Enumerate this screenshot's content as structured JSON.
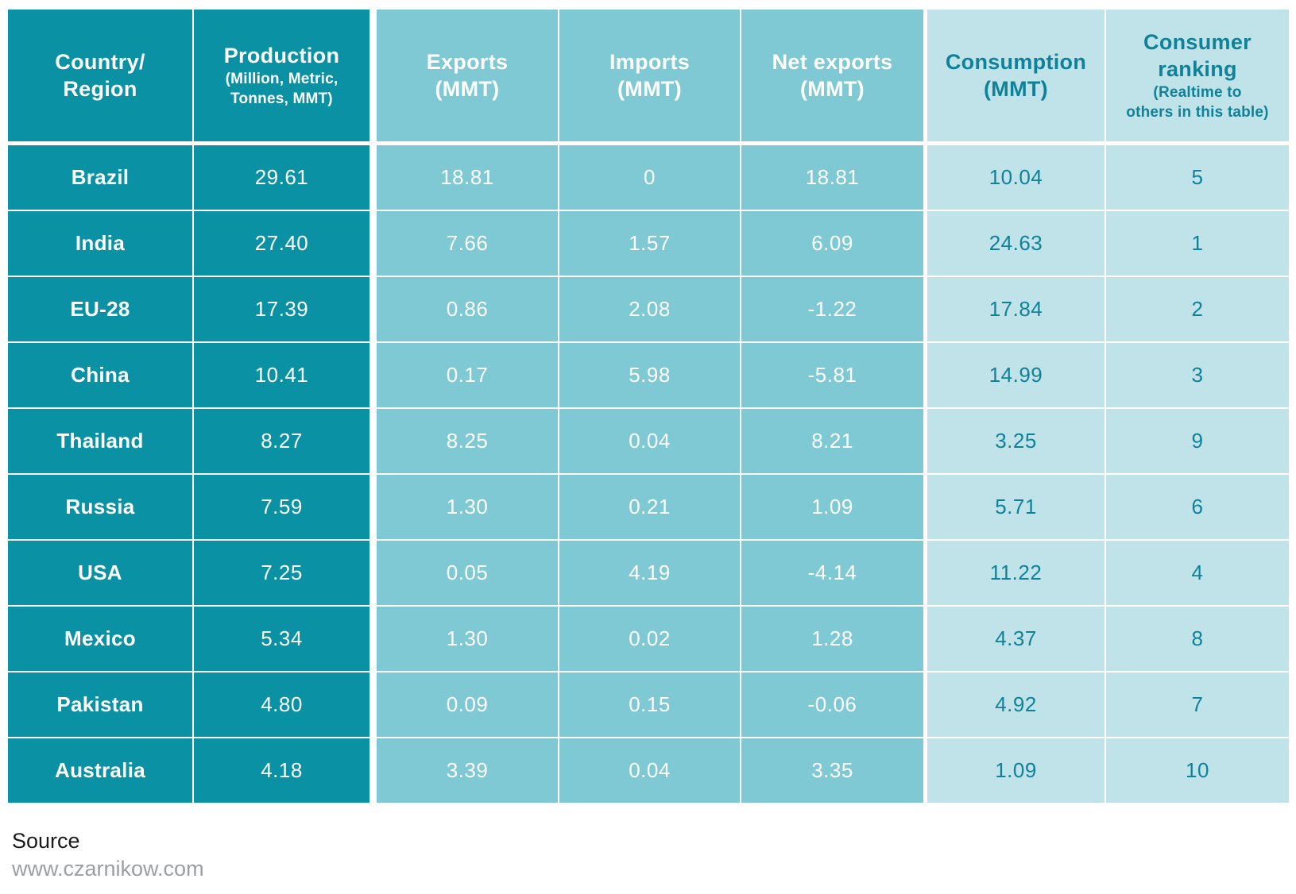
{
  "colors": {
    "dark_teal": "#0A91A4",
    "mid_teal": "#7FC9D4",
    "light_teal": "#BFE3E8",
    "teal_text": "#0F8299"
  },
  "header": {
    "columns": [
      {
        "line1": "Country/",
        "line2": "Region"
      },
      {
        "line1": "Production",
        "note1": "(Million, Metric,",
        "note2": "Tonnes, MMT)"
      },
      {
        "line1": "Exports",
        "line2": "(MMT)"
      },
      {
        "line1": "Imports",
        "line2": "(MMT)"
      },
      {
        "line1": "Net exports",
        "line2": "(MMT)"
      },
      {
        "line1": "Consumption",
        "line2": "(MMT)"
      },
      {
        "line1": "Consumer",
        "line2": "ranking",
        "note1": "(Realtime to",
        "note2": "others in this table)"
      }
    ]
  },
  "rows": [
    {
      "country": "Brazil",
      "production": "29.61",
      "exports": "18.81",
      "imports": "0",
      "net_exports": "18.81",
      "consumption": "10.04",
      "ranking": "5"
    },
    {
      "country": "India",
      "production": "27.40",
      "exports": "7.66",
      "imports": "1.57",
      "net_exports": "6.09",
      "consumption": "24.63",
      "ranking": "1"
    },
    {
      "country": "EU-28",
      "production": "17.39",
      "exports": "0.86",
      "imports": "2.08",
      "net_exports": "-1.22",
      "consumption": "17.84",
      "ranking": "2"
    },
    {
      "country": "China",
      "production": "10.41",
      "exports": "0.17",
      "imports": "5.98",
      "net_exports": "-5.81",
      "consumption": "14.99",
      "ranking": "3"
    },
    {
      "country": "Thailand",
      "production": "8.27",
      "exports": "8.25",
      "imports": "0.04",
      "net_exports": "8.21",
      "consumption": "3.25",
      "ranking": "9"
    },
    {
      "country": "Russia",
      "production": "7.59",
      "exports": "1.30",
      "imports": "0.21",
      "net_exports": "1.09",
      "consumption": "5.71",
      "ranking": "6"
    },
    {
      "country": "USA",
      "production": "7.25",
      "exports": "0.05",
      "imports": "4.19",
      "net_exports": "-4.14",
      "consumption": "11.22",
      "ranking": "4"
    },
    {
      "country": "Mexico",
      "production": "5.34",
      "exports": "1.30",
      "imports": "0.02",
      "net_exports": "1.28",
      "consumption": "4.37",
      "ranking": "8"
    },
    {
      "country": "Pakistan",
      "production": "4.80",
      "exports": "0.09",
      "imports": "0.15",
      "net_exports": "-0.06",
      "consumption": "4.92",
      "ranking": "7"
    },
    {
      "country": "Australia",
      "production": "4.18",
      "exports": "3.39",
      "imports": "0.04",
      "net_exports": "3.35",
      "consumption": "1.09",
      "ranking": "10"
    }
  ],
  "footer": {
    "source_label": "Source",
    "source_url": "www.czarnikow.com"
  },
  "chart_data": {
    "type": "table",
    "columns": [
      "Country/Region",
      "Production (Million, Metric, Tonnes, MMT)",
      "Exports (MMT)",
      "Imports (MMT)",
      "Net exports (MMT)",
      "Consumption (MMT)",
      "Consumer ranking (Realtime to others in this table)"
    ],
    "rows": [
      [
        "Brazil",
        29.61,
        18.81,
        0,
        18.81,
        10.04,
        5
      ],
      [
        "India",
        27.4,
        7.66,
        1.57,
        6.09,
        24.63,
        1
      ],
      [
        "EU-28",
        17.39,
        0.86,
        2.08,
        -1.22,
        17.84,
        2
      ],
      [
        "China",
        10.41,
        0.17,
        5.98,
        -5.81,
        14.99,
        3
      ],
      [
        "Thailand",
        8.27,
        8.25,
        0.04,
        8.21,
        3.25,
        9
      ],
      [
        "Russia",
        7.59,
        1.3,
        0.21,
        1.09,
        5.71,
        6
      ],
      [
        "USA",
        7.25,
        0.05,
        4.19,
        -4.14,
        11.22,
        4
      ],
      [
        "Mexico",
        5.34,
        1.3,
        0.02,
        1.28,
        4.37,
        8
      ],
      [
        "Pakistan",
        4.8,
        0.09,
        0.15,
        -0.06,
        4.92,
        7
      ],
      [
        "Australia",
        4.18,
        3.39,
        0.04,
        3.35,
        1.09,
        10
      ]
    ],
    "source": "www.czarnikow.com"
  }
}
